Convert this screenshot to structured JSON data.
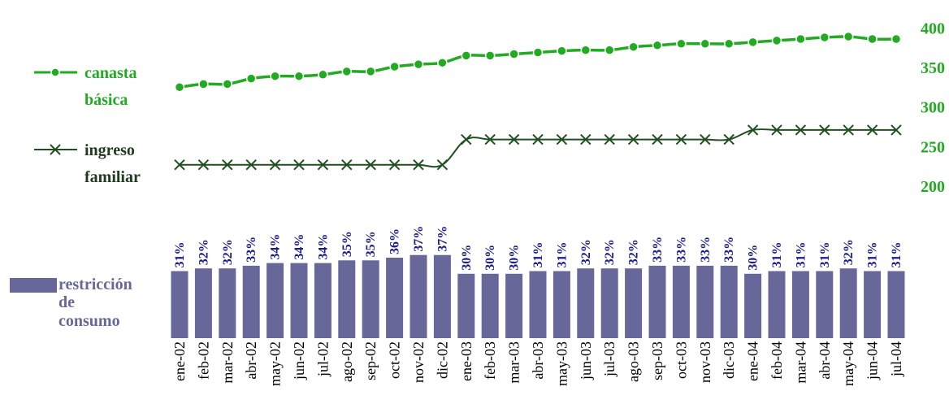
{
  "chart_data": {
    "type": "combo",
    "categories": [
      "ene-02",
      "feb-02",
      "mar-02",
      "abr-02",
      "may-02",
      "jun-02",
      "jul-02",
      "ago-02",
      "sep-02",
      "oct-02",
      "nov-02",
      "dic-02",
      "ene-03",
      "feb-03",
      "mar-03",
      "abr-03",
      "may-03",
      "jun-03",
      "jul-03",
      "ago-03",
      "sep-03",
      "oct-03",
      "nov-03",
      "dic-03",
      "ene-04",
      "feb-04",
      "mar-04",
      "abr-04",
      "may-04",
      "jun-04",
      "jul-04"
    ],
    "series": [
      {
        "name": "canasta básica",
        "kind": "line",
        "marker": "circle",
        "color": "#22aa22",
        "values": [
          325,
          329,
          329,
          336,
          339,
          339,
          341,
          345,
          345,
          351,
          354,
          356,
          365,
          365,
          367,
          369,
          371,
          372,
          372,
          376,
          378,
          380,
          380,
          380,
          382,
          384,
          386,
          388,
          389,
          386,
          386
        ]
      },
      {
        "name": "ingreso familiar",
        "kind": "line",
        "marker": "x",
        "color": "#1f4f1f",
        "values": [
          227,
          227,
          227,
          227,
          227,
          227,
          227,
          227,
          227,
          227,
          227,
          227,
          259,
          259,
          259,
          259,
          259,
          259,
          259,
          259,
          259,
          259,
          259,
          259,
          271,
          271,
          271,
          271,
          271,
          271,
          271
        ]
      },
      {
        "name": "restricción de consumo",
        "kind": "bar",
        "color": "#67679a",
        "label_color": "#1a1a8c",
        "values": [
          31,
          32,
          32,
          33,
          34,
          34,
          34,
          35,
          35,
          36,
          37,
          37,
          30,
          30,
          30,
          31,
          31,
          32,
          32,
          32,
          33,
          33,
          33,
          33,
          30,
          31,
          31,
          31,
          32,
          31,
          31
        ],
        "labels": [
          "31%",
          "32%",
          "32%",
          "33%",
          "34%",
          "34%",
          "34%",
          "35%",
          "35%",
          "36%",
          "37%",
          "37%",
          "30%",
          "30%",
          "30%",
          "31%",
          "31%",
          "32%",
          "32%",
          "32%",
          "33%",
          "33%",
          "33%",
          "33%",
          "30%",
          "31%",
          "31%",
          "31%",
          "32%",
          "31%",
          "31%"
        ]
      }
    ],
    "right_axis": {
      "ticks": [
        "400",
        "350",
        "300",
        "250",
        "200"
      ],
      "tick_values": [
        400,
        350,
        300,
        250,
        200
      ],
      "color": "#22aa22"
    },
    "legend": [
      {
        "lines": [
          "canasta",
          "básica"
        ],
        "color": "#22aa22"
      },
      {
        "lines": [
          "ingreso",
          "familiar"
        ],
        "color": "#1f3a1f"
      },
      {
        "lines": [
          "restricción",
          "de",
          "consumo"
        ],
        "color": "#67679a"
      }
    ],
    "grid": false
  }
}
